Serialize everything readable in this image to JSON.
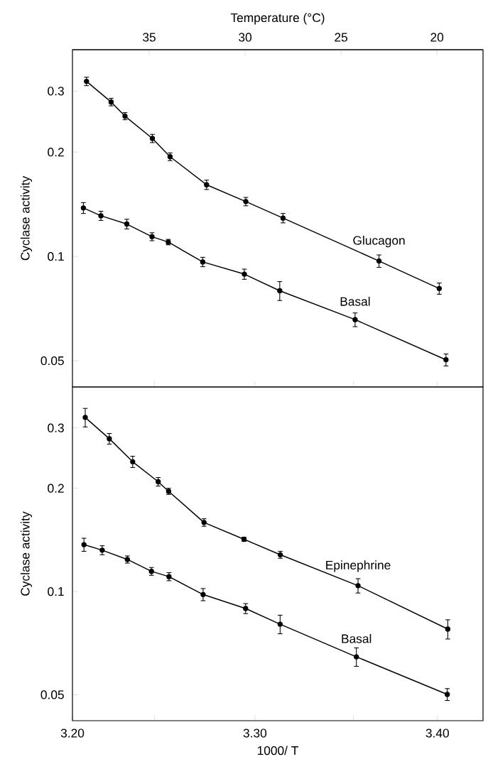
{
  "chart_data": [
    {
      "type": "line",
      "x2label": "Temperature (°C)",
      "ylabel": "Cyclase activity",
      "log": true,
      "marker": "circle",
      "line_style": "solid",
      "tick_labels": "y",
      "xlim": [
        3.2,
        3.425
      ],
      "xticks": [
        {
          "value": 3.2,
          "label": null
        },
        {
          "value": 3.245,
          "label": null
        },
        {
          "value": 3.3,
          "label": null
        },
        {
          "value": 3.354,
          "label": null
        },
        {
          "value": 3.4,
          "label": null
        }
      ],
      "x2lim": [
        39.0,
        17.6
      ],
      "x2ticks": [
        35,
        30,
        25,
        20
      ],
      "ylim": [
        0.042,
        0.395
      ],
      "yticks": [
        0.05,
        0.1,
        0.2,
        0.3
      ],
      "series": [
        {
          "name": "Glucagon",
          "color": "#000000",
          "x": [
            3.2077,
            3.2212,
            3.2288,
            3.2438,
            3.2535,
            3.2735,
            3.295,
            3.3154,
            3.368,
            3.401
          ],
          "values": [
            0.32,
            0.279,
            0.254,
            0.219,
            0.194,
            0.161,
            0.144,
            0.129,
            0.097,
            0.0808
          ],
          "errors": [
            0.009,
            0.007,
            0.006,
            0.006,
            0.005,
            0.005,
            0.004,
            0.004,
            0.004,
            0.003
          ]
        },
        {
          "name": "Basal",
          "color": "#000000",
          "x": [
            3.206,
            3.2156,
            3.2298,
            3.2436,
            3.2525,
            3.2714,
            3.2942,
            3.3136,
            3.3549,
            3.4047
          ],
          "values": [
            0.138,
            0.131,
            0.124,
            0.114,
            0.11,
            0.0964,
            0.0889,
            0.0796,
            0.0657,
            0.0503
          ],
          "errors": [
            0.005,
            0.004,
            0.004,
            0.003,
            0.002,
            0.003,
            0.003,
            0.005,
            0.003,
            0.002
          ]
        }
      ]
    },
    {
      "type": "line",
      "xlabel": "1000/ T",
      "ylabel": "Cyclase activity",
      "log": true,
      "marker": "circle",
      "line_style": "solid",
      "xlim": [
        3.2,
        3.425
      ],
      "xticks": [
        {
          "value": 3.2,
          "label": "3.20"
        },
        {
          "value": 3.245,
          "label": null
        },
        {
          "value": 3.3,
          "label": "3.30"
        },
        {
          "value": 3.354,
          "label": null
        },
        {
          "value": 3.4,
          "label": "3.40"
        }
      ],
      "ylim": [
        0.042,
        0.395
      ],
      "yticks": [
        0.05,
        0.1,
        0.2,
        0.3
      ],
      "series": [
        {
          "name": "Epinephrine",
          "color": "#000000",
          "x": [
            3.207,
            3.2202,
            3.233,
            3.247,
            3.2527,
            3.2721,
            3.294,
            3.3139,
            3.3565,
            3.4057
          ],
          "values": [
            0.322,
            0.279,
            0.239,
            0.209,
            0.196,
            0.159,
            0.142,
            0.128,
            0.104,
            0.0777
          ],
          "errors": [
            0.02,
            0.01,
            0.009,
            0.006,
            0.004,
            0.004,
            0.002,
            0.003,
            0.005,
            0.005
          ]
        },
        {
          "name": "Basal",
          "color": "#000000",
          "x": [
            3.2063,
            3.2163,
            3.2301,
            3.2433,
            3.2529,
            3.2716,
            3.2949,
            3.3138,
            3.3556,
            3.4054
          ],
          "values": [
            0.137,
            0.132,
            0.124,
            0.1145,
            0.1105,
            0.098,
            0.0892,
            0.0803,
            0.0645,
            0.0501
          ],
          "errors": [
            0.006,
            0.004,
            0.003,
            0.003,
            0.003,
            0.004,
            0.003,
            0.005,
            0.004,
            0.002
          ]
        }
      ]
    }
  ]
}
